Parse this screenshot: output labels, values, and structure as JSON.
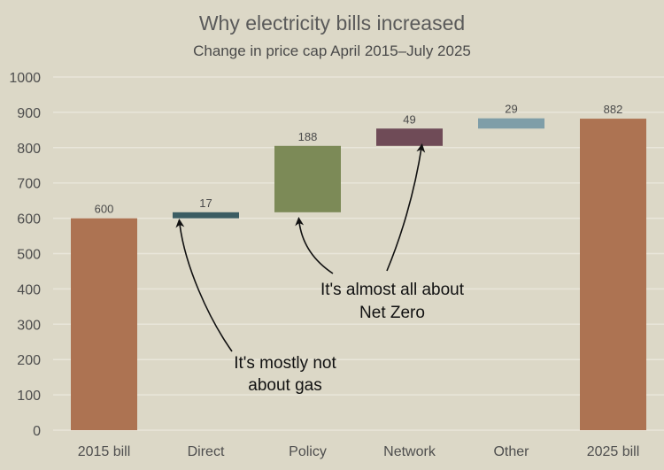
{
  "chart_data": {
    "type": "bar",
    "subtype": "waterfall",
    "title": "Why electricity bills increased",
    "subtitle": "Change in price cap April 2015–July 2025",
    "xlabel": "",
    "ylabel": "",
    "ylim": [
      0,
      1000
    ],
    "yticks": [
      0,
      100,
      200,
      300,
      400,
      500,
      600,
      700,
      800,
      900,
      1000
    ],
    "grid": true,
    "categories": [
      "2015 bill",
      "Direct",
      "Policy",
      "Network",
      "Other",
      "2025 bill"
    ],
    "values": [
      600,
      17,
      188,
      49,
      29,
      882
    ],
    "bases": [
      0,
      600,
      617,
      805,
      854,
      0
    ],
    "data_labels": [
      "600",
      "17",
      "188",
      "49",
      "29",
      "882"
    ],
    "colors": [
      "#ad7352",
      "#3b5d63",
      "#7c8a57",
      "#6f4b57",
      "#7f9ea8",
      "#ad7352"
    ],
    "annotations": [
      {
        "text_lines": [
          "It's mostly not",
          "about gas"
        ],
        "points_to": [
          "Direct"
        ]
      },
      {
        "text_lines": [
          "It's almost all about",
          "Net Zero"
        ],
        "points_to": [
          "Policy",
          "Network"
        ]
      }
    ]
  }
}
